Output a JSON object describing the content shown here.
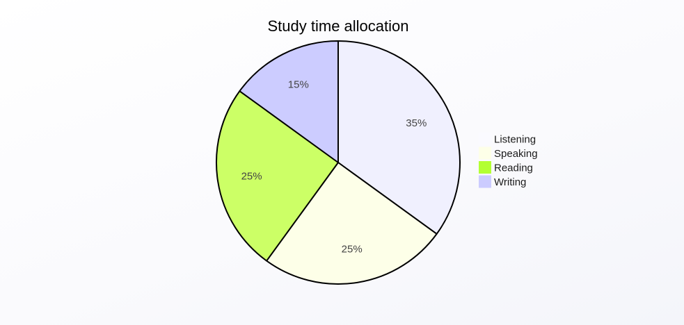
{
  "chart_data": {
    "type": "pie",
    "title": "Study time allocation",
    "categories": [
      "Listening",
      "Speaking",
      "Reading",
      "Writing"
    ],
    "values": [
      35,
      25,
      25,
      15
    ],
    "value_labels": [
      "35%",
      "25%",
      "25%",
      "15%"
    ],
    "colors": [
      "#f0f0fe",
      "#fdffe8",
      "#ccff66",
      "#ccccff"
    ],
    "legend_colors": [
      "#fafaff",
      "#fdffe8",
      "#b3ff33",
      "#ccccff"
    ],
    "slice_stroke": "#000000",
    "start_angle": "12 o'clock",
    "direction": "clockwise",
    "legend": "right"
  }
}
